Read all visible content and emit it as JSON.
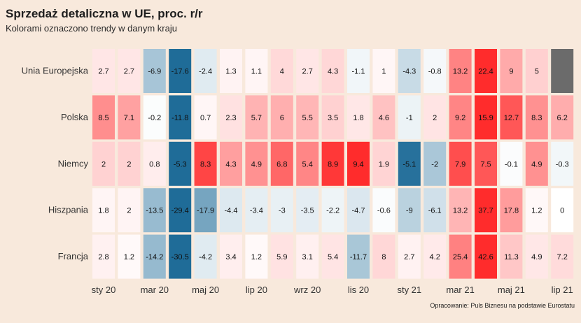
{
  "title": "Sprzedaż detaliczna w UE, proc. r/r",
  "subtitle": "Kolorami oznaczono trendy w danym kraju",
  "caption": "Opracowanie: Puls Biznesu na podstawie Eurostatu",
  "chart_data": {
    "type": "heatmap",
    "title": "Sprzedaż detaliczna w UE, proc. r/r",
    "subtitle": "Kolorami oznaczono trendy w danym kraju",
    "rows": [
      "Unia Europejska",
      "Polska",
      "Niemcy",
      "Hiszpania",
      "Francja"
    ],
    "columns": [
      "sty 20",
      "lut 20",
      "mar 20",
      "kwi 20",
      "maj 20",
      "cze 20",
      "lip 20",
      "sie 20",
      "wrz 20",
      "paź 20",
      "lis 20",
      "gru 20",
      "sty 21",
      "lut 21",
      "mar 21",
      "kwi 21",
      "maj 21",
      "cze 21",
      "lip 21"
    ],
    "x_tick_labels": [
      "sty 20",
      "mar 20",
      "maj 20",
      "lip 20",
      "wrz 20",
      "lis 20",
      "sty 21",
      "mar 21",
      "maj 21",
      "lip 21"
    ],
    "values": [
      [
        2.7,
        2.7,
        -6.9,
        -17.6,
        -2.4,
        1.3,
        1.1,
        4,
        2.7,
        4.3,
        -1.1,
        1,
        -4.3,
        -0.8,
        13.2,
        22.4,
        9,
        5,
        null
      ],
      [
        8.5,
        7.1,
        -0.2,
        -11.8,
        0.7,
        2.3,
        5.7,
        6,
        5.5,
        3.5,
        1.8,
        4.6,
        -1,
        2,
        9.2,
        15.9,
        12.7,
        8.3,
        6.2
      ],
      [
        2,
        2,
        0.8,
        -5.3,
        8.3,
        4.3,
        4.9,
        6.8,
        5.4,
        8.9,
        9.4,
        1.9,
        -5.1,
        -2,
        7.9,
        7.5,
        -0.1,
        4.9,
        -0.3
      ],
      [
        1.8,
        2,
        -13.5,
        -29.4,
        -17.9,
        -4.4,
        -3.4,
        -3,
        -3.5,
        -2.2,
        -4.7,
        -0.6,
        -9,
        -6.1,
        13.2,
        37.7,
        17.8,
        1.2,
        0
      ],
      [
        2.8,
        1.2,
        -14.2,
        -30.5,
        -4.2,
        3.4,
        1.2,
        5.9,
        3.1,
        5.4,
        -11.7,
        8,
        2.7,
        4.2,
        25.4,
        42.6,
        11.3,
        4.9,
        7.2
      ]
    ],
    "color_scale": {
      "type": "diverging, scaled per country",
      "negative": "#0b5f8f",
      "zero": "#ffffff",
      "positive": "#ff1a1a",
      "missing": "#6b6b6b"
    },
    "grid": false,
    "legend": "none"
  }
}
